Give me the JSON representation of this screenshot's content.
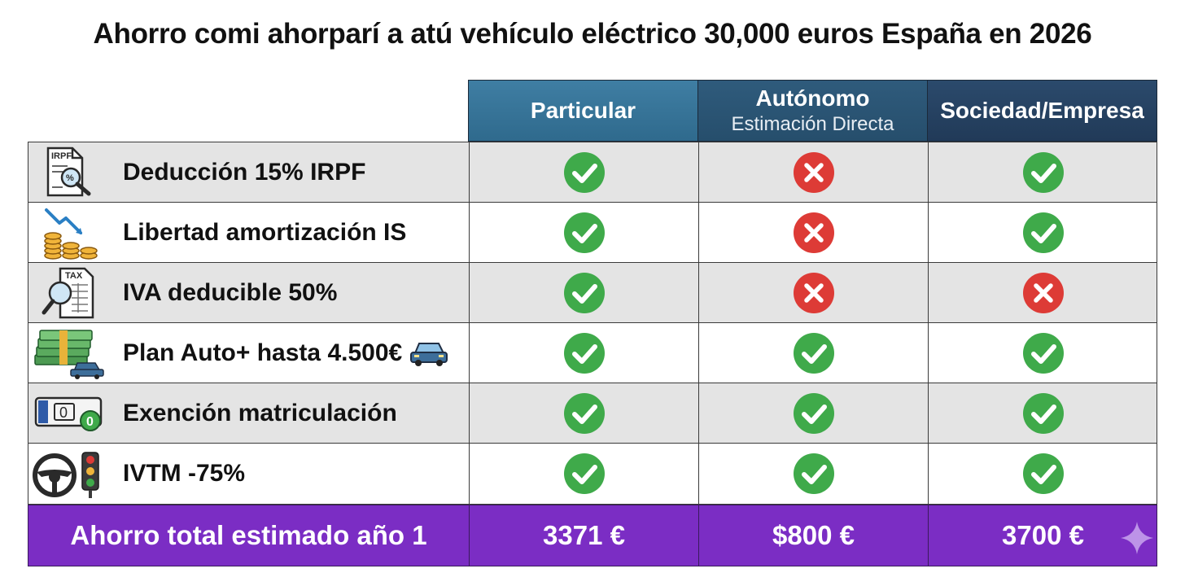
{
  "title": "Ahorro comi ahorparí a atú vehículo eléctrico  30,000 euros España en 2026",
  "columns": [
    {
      "main": "Particular",
      "sub": ""
    },
    {
      "main": "Autónomo",
      "sub": "Estimación Directa"
    },
    {
      "main": "Sociedad/Empresa",
      "sub": ""
    }
  ],
  "rows": [
    {
      "label": "Deducción 15% IRPF",
      "icon": "irpf-document-icon",
      "values": [
        "yes",
        "no",
        "yes"
      ]
    },
    {
      "label": "Libertad amortización IS",
      "icon": "coins-chart-icon",
      "values": [
        "yes",
        "no",
        "yes"
      ]
    },
    {
      "label": "IVA deducible 50%",
      "icon": "tax-document-icon",
      "values": [
        "yes",
        "no",
        "no"
      ]
    },
    {
      "label": "Plan Auto+ hasta 4.500€",
      "icon": "money-car-icon",
      "values": [
        "yes",
        "yes",
        "yes"
      ]
    },
    {
      "label": "Exención matriculación",
      "icon": "license-plate-icon",
      "values": [
        "yes",
        "yes",
        "yes"
      ]
    },
    {
      "label": "IVTM -75%",
      "icon": "steering-traffic-icon",
      "values": [
        "yes",
        "yes",
        "yes"
      ]
    }
  ],
  "total": {
    "label": "Ahorro total estimado año 1",
    "values": [
      "3371 €",
      "$800 €",
      "3700 €"
    ]
  },
  "colors": {
    "check": "#3faa4a",
    "cross": "#dd3b36",
    "total_bg": "#7b2dc4",
    "header_1": "#3a789c",
    "header_2": "#2b5576",
    "header_3": "#253f5e"
  }
}
